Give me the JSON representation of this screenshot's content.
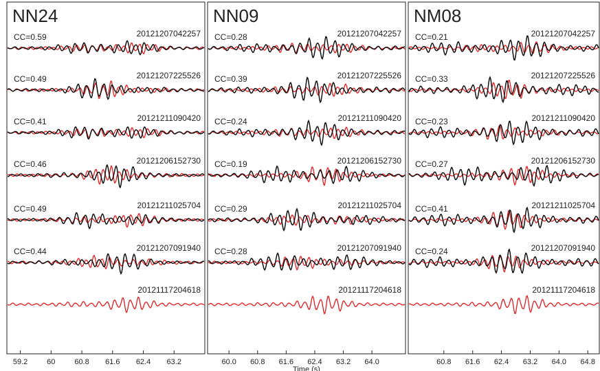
{
  "panels": [
    {
      "title": "NN24",
      "xlim": [
        58.85,
        64.0
      ],
      "xticks": [
        59.2,
        60,
        60.8,
        61.6,
        62.4,
        63.2
      ],
      "traces": [
        {
          "cc": "CC=0.59",
          "event": "20121207042257"
        },
        {
          "cc": "CC=0.49",
          "event": "20121207225526"
        },
        {
          "cc": "CC=0.41",
          "event": "20121211090420"
        },
        {
          "cc": "CC=0.46",
          "event": "20121206152730"
        },
        {
          "cc": "CC=0.49",
          "event": "20121211025704"
        },
        {
          "cc": "CC=0.44",
          "event": "20121207091940"
        }
      ],
      "reference": "20121117204618"
    },
    {
      "title": "NN09",
      "xlim": [
        59.4,
        64.94
      ],
      "xticks": [
        {
          "value": 60,
          "label": "60.0"
        },
        60.8,
        61.6,
        62.4,
        63.2,
        {
          "value": 64,
          "label": "64.0"
        }
      ],
      "xlabel": "Time (s)",
      "traces": [
        {
          "cc": "CC=0.28",
          "event": "20121207042257"
        },
        {
          "cc": "CC=0.39",
          "event": "20121207225526"
        },
        {
          "cc": "CC=0.24",
          "event": "20121211090420"
        },
        {
          "cc": "CC=0.19",
          "event": "20121206152730"
        },
        {
          "cc": "CC=0.29",
          "event": "20121211025704"
        },
        {
          "cc": "CC=0.28",
          "event": "20121207091940"
        }
      ],
      "reference": "20121117204618"
    },
    {
      "title": "NM08",
      "xlim": [
        59.81,
        65.12
      ],
      "xticks": [
        60.8,
        61.6,
        62.4,
        63.2,
        {
          "value": 64,
          "label": "64.0"
        },
        64.8
      ],
      "traces": [
        {
          "cc": "CC=0.21",
          "event": "20121207042257"
        },
        {
          "cc": "CC=0.33",
          "event": "20121207225526"
        },
        {
          "cc": "CC=0.23",
          "event": "20121211090420"
        },
        {
          "cc": "CC=0.27",
          "event": "20121206152730"
        },
        {
          "cc": "CC=0.41",
          "event": "20121211025704"
        },
        {
          "cc": "CC=0.24",
          "event": "20121207091940"
        }
      ],
      "reference": "20121117204618"
    }
  ]
}
